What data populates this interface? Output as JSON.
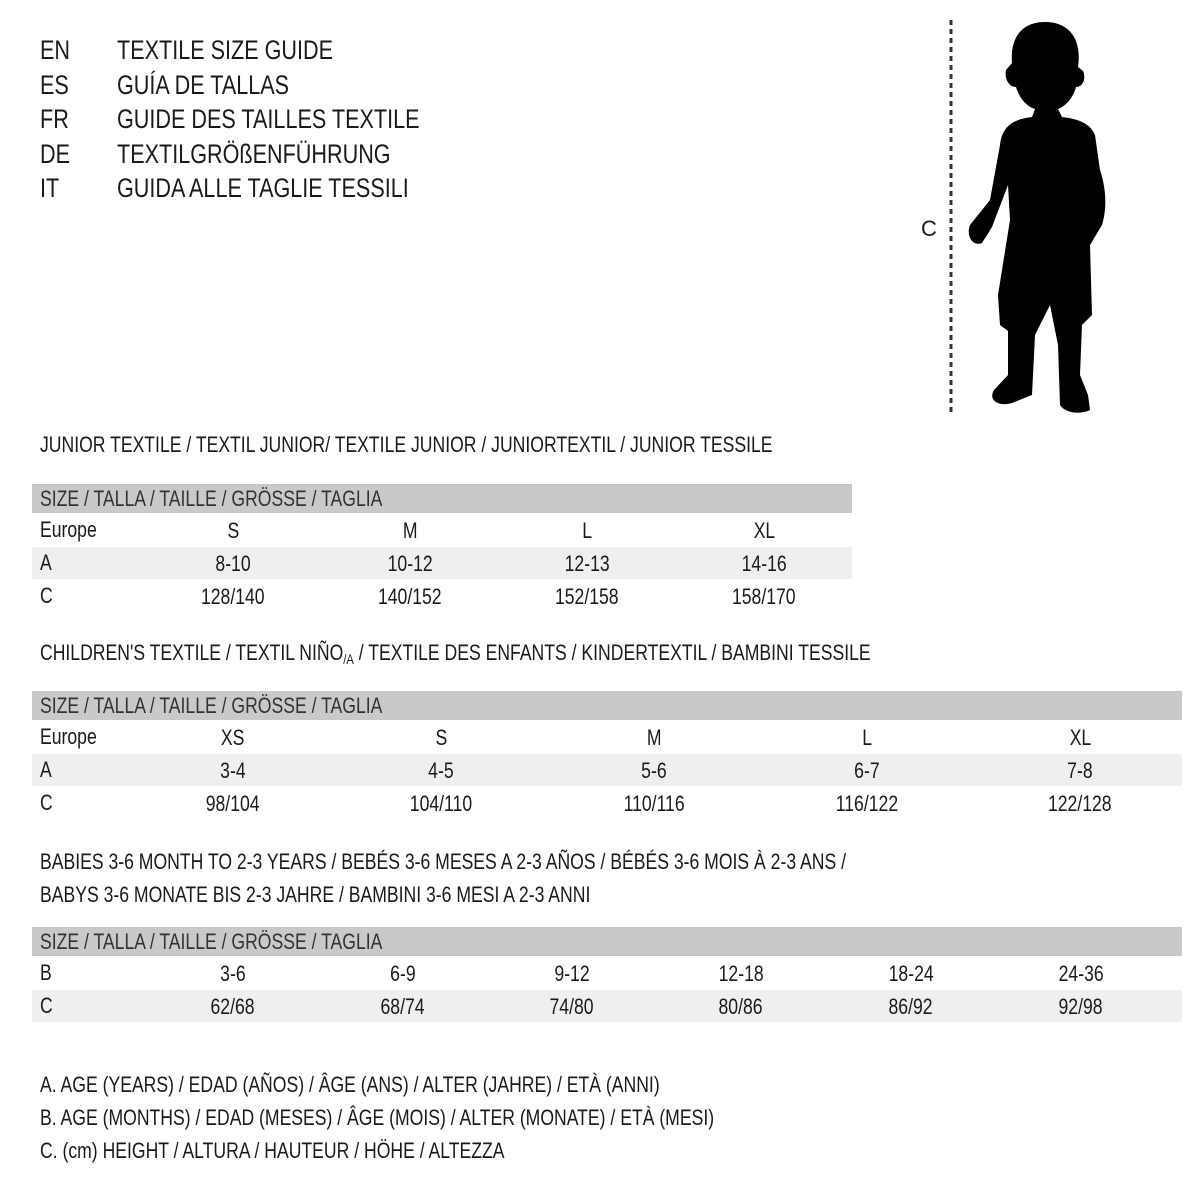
{
  "languages": [
    {
      "code": "EN",
      "title": "TEXTILE SIZE GUIDE"
    },
    {
      "code": "ES",
      "title": "GUÍA DE TALLAS"
    },
    {
      "code": "FR",
      "title": "GUIDE DES TAILLES TEXTILE"
    },
    {
      "code": "DE",
      "title": "TEXTILGRÖßENFÜHRUNG"
    },
    {
      "code": "IT",
      "title": "GUIDA ALLE TAGLIE TESSILI"
    }
  ],
  "figure": {
    "label": "C",
    "icon": "child-silhouette-icon"
  },
  "size_header": "SIZE / TALLA / TAILLE / GRÖSSE / TAGLIA",
  "junior": {
    "title": "JUNIOR TEXTILE / TEXTIL JUNIOR/ TEXTILE JUNIOR / JUNIORTEXTIL / JUNIOR TESSILE",
    "rows": [
      {
        "label": "Europe",
        "values": [
          "S",
          "M",
          "L",
          "XL"
        ]
      },
      {
        "label": "A",
        "values": [
          "8-10",
          "10-12",
          "12-13",
          "14-16"
        ]
      },
      {
        "label": "C",
        "values": [
          "128/140",
          "140/152",
          "152/158",
          "158/170"
        ]
      }
    ]
  },
  "children": {
    "title_pre": "CHILDREN'S TEXTILE / TEXTIL NIÑO",
    "title_sub": "/A",
    "title_post": " / TEXTILE DES ENFANTS / KINDERTEXTIL / BAMBINI TESSILE",
    "rows": [
      {
        "label": "Europe",
        "values": [
          "XS",
          "S",
          "M",
          "L",
          "XL"
        ]
      },
      {
        "label": "A",
        "values": [
          "3-4",
          "4-5",
          "5-6",
          "6-7",
          "7-8"
        ]
      },
      {
        "label": "C",
        "values": [
          "98/104",
          "104/110",
          "110/116",
          "116/122",
          "122/128"
        ]
      }
    ]
  },
  "babies": {
    "title_line1": "BABIES 3-6 MONTH TO 2-3 YEARS / BEBÉS 3-6 MESES A 2-3 AÑOS / BÉBÉS 3-6 MOIS À 2-3 ANS /",
    "title_line2": "BABYS 3-6 MONATE BIS 2-3 JAHRE / BAMBINI 3-6 MESI A 2-3 ANNI",
    "rows": [
      {
        "label": "B",
        "values": [
          "3-6",
          "6-9",
          "9-12",
          "12-18",
          "18-24",
          "24-36"
        ]
      },
      {
        "label": "C",
        "values": [
          "62/68",
          "68/74",
          "74/80",
          "80/86",
          "86/92",
          "92/98"
        ]
      }
    ]
  },
  "legend": [
    "A. AGE (YEARS) / EDAD (AÑOS) / ÂGE (ANS) / ALTER (JAHRE) / ETÀ (ANNI)",
    "B. AGE (MONTHS) / EDAD (MESES) / ÂGE (MOIS) / ALTER (MONATE) / ETÀ (MESI)",
    "C. (cm) HEIGHT / ALTURA / HAUTEUR / HÖHE / ALTEZZA"
  ],
  "colors": {
    "header_bar": "#c9c9c9",
    "alt_row": "#efefef"
  }
}
